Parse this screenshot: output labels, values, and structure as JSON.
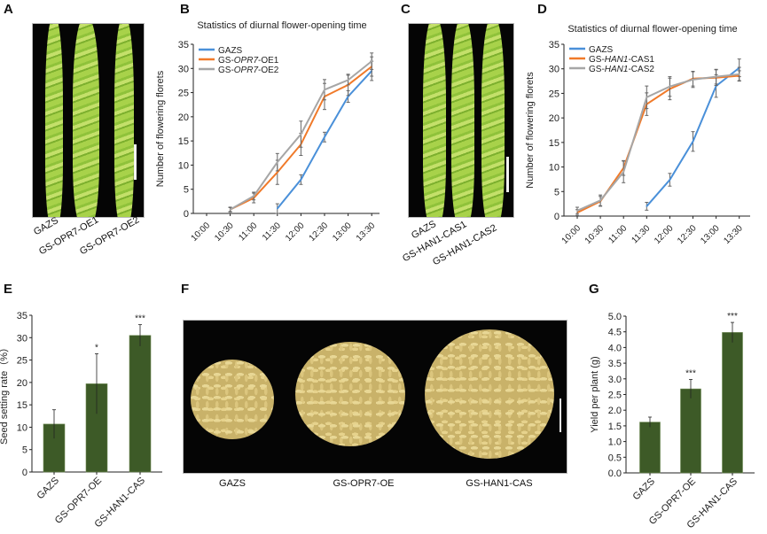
{
  "panels": {
    "A": {
      "letter": "A",
      "labels": [
        "GAZS",
        "GS-OPR7-OE1",
        "GS-OPR7-OE2"
      ]
    },
    "B": {
      "letter": "B"
    },
    "C": {
      "letter": "C",
      "labels": [
        "GAZS",
        "GS-HAN1-CAS1",
        "GS-HAN1-CAS2"
      ]
    },
    "D": {
      "letter": "D"
    },
    "E": {
      "letter": "E"
    },
    "F": {
      "letter": "F",
      "labels": [
        "GAZS",
        "GS-OPR7-OE",
        "GS-HAN1-CAS"
      ]
    },
    "G": {
      "letter": "G"
    }
  },
  "colors": {
    "gazs": "#4a90d9",
    "oe1": "#f07a2a",
    "oe2": "#a6a6a6",
    "bar": "#3d5a27",
    "errorbar": "#555555"
  },
  "chart_data": [
    {
      "id": "B",
      "type": "line",
      "title": "Statistics of diurnal flower-opening time",
      "xlabel": "",
      "ylabel": "Number of flowering florets",
      "x": [
        "10:00",
        "10:30",
        "11:00",
        "11:30",
        "12:00",
        "12:30",
        "13:00",
        "13:30"
      ],
      "ylim": [
        0,
        35
      ],
      "yticks": [
        0,
        5,
        10,
        15,
        20,
        25,
        30,
        35
      ],
      "grid": false,
      "legend": "top-left",
      "series": [
        {
          "name": "GAZS",
          "italic_part": "",
          "color_key": "gazs",
          "values": [
            null,
            null,
            null,
            1,
            7,
            15.8,
            24.2,
            29.5
          ],
          "errors": [
            null,
            null,
            null,
            1,
            1,
            1,
            1.2,
            2
          ]
        },
        {
          "name": "GS-OPR7-OE1",
          "prefix": "GS-",
          "italic_part": "OPR7",
          "suffix": "-OE1",
          "color_key": "oe1",
          "values": [
            null,
            0.8,
            3.2,
            8.5,
            14.3,
            24.2,
            26.6,
            30.4
          ],
          "errors": [
            null,
            0.4,
            1,
            2.5,
            2.3,
            2.7,
            2.2,
            2
          ]
        },
        {
          "name": "GS-OPR7-OE2",
          "prefix": "GS-",
          "italic_part": "OPR7",
          "suffix": "-OE2",
          "color_key": "oe2",
          "values": [
            null,
            0.8,
            3.6,
            10.6,
            16.4,
            25.6,
            27.6,
            31.5
          ],
          "errors": [
            null,
            0.5,
            0.8,
            1.8,
            2.7,
            2.1,
            1,
            1.7
          ]
        }
      ]
    },
    {
      "id": "D",
      "type": "line",
      "title": "Statistics of diurnal flower-opening time",
      "xlabel": "",
      "ylabel": "Number of flowering florets",
      "x": [
        "10:00",
        "10:30",
        "11:00",
        "11:30",
        "12:00",
        "12:30",
        "13:00",
        "13:30"
      ],
      "ylim": [
        0,
        35
      ],
      "yticks": [
        0,
        5,
        10,
        15,
        20,
        25,
        30,
        35
      ],
      "grid": false,
      "legend": "top-left",
      "series": [
        {
          "name": "GAZS",
          "italic_part": "",
          "color_key": "gazs",
          "values": [
            null,
            null,
            null,
            2,
            7.4,
            15.2,
            26.5,
            30.2
          ],
          "errors": [
            null,
            null,
            null,
            0.8,
            1.3,
            2,
            2.3,
            1.8
          ]
        },
        {
          "name": "GS-HAN1-CAS1",
          "prefix": "GS-",
          "italic_part": "HAN1",
          "suffix": "-CAS1",
          "color_key": "oe1",
          "values": [
            0.7,
            3,
            9.8,
            22.8,
            25.9,
            28,
            28.2,
            28.6
          ],
          "errors": [
            0.6,
            1,
            1.5,
            2.3,
            2.2,
            1.5,
            1.6,
            1
          ]
        },
        {
          "name": "GS-HAN1-CAS2",
          "prefix": "GS-",
          "italic_part": "HAN1",
          "suffix": "-CAS2",
          "color_key": "oe2",
          "values": [
            1.1,
            3.2,
            9,
            24.2,
            26.4,
            27.8,
            28.4,
            28.9
          ],
          "errors": [
            0.7,
            1.1,
            2.2,
            2.3,
            2,
            1.6,
            1.5,
            1.4
          ]
        }
      ]
    },
    {
      "id": "E",
      "type": "bar",
      "title": "",
      "xlabel": "",
      "ylabel": "Seed setting rate（%）",
      "categories": [
        "GAZS",
        "GS-OPR7-OE",
        "GS-HAN1-CAS"
      ],
      "values": [
        10.7,
        19.7,
        30.5
      ],
      "errors": [
        3.2,
        6.7,
        2.4
      ],
      "significance": [
        "",
        "*",
        "***"
      ],
      "ylim": [
        0,
        35
      ],
      "yticks": [
        0,
        5,
        10,
        15,
        20,
        25,
        30,
        35
      ],
      "grid": false
    },
    {
      "id": "G",
      "type": "bar",
      "title": "",
      "xlabel": "",
      "ylabel": "Yield per plant (g)",
      "categories": [
        "GAZS",
        "GS-OPR7-OE",
        "GS-HAN1-CAS"
      ],
      "values": [
        1.62,
        2.68,
        4.48
      ],
      "errors": [
        0.16,
        0.3,
        0.32
      ],
      "significance": [
        "",
        "***",
        "***"
      ],
      "ylim": [
        0,
        5
      ],
      "yticks": [
        "0.0",
        "0.5",
        "1.0",
        "1.5",
        "2.0",
        "2.5",
        "3.0",
        "3.5",
        "4.0",
        "4.5",
        "5.0"
      ],
      "grid": false
    }
  ]
}
